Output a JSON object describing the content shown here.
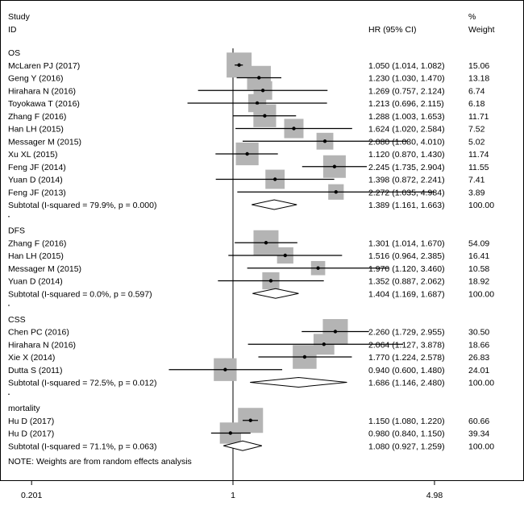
{
  "chart_data": {
    "type": "forest",
    "scale": "log",
    "x_ticks": [
      "0.201",
      "1",
      "4.98"
    ],
    "x_range": [
      0.201,
      4.98
    ],
    "null_value": 1,
    "header": {
      "study_1": "Study",
      "study_2": "ID",
      "hr": "HR (95% CI)",
      "weight_1": "%",
      "weight_2": "Weight"
    },
    "note": "NOTE: Weights are from random effects analysis",
    "groups": [
      {
        "name": "OS",
        "studies": [
          {
            "label": "McLaren PJ (2017)",
            "hr": 1.05,
            "lo": 1.014,
            "hi": 1.082,
            "ci_text": "1.050 (1.014, 1.082)",
            "weight": "15.06"
          },
          {
            "label": "Geng Y (2016)",
            "hr": 1.23,
            "lo": 1.03,
            "hi": 1.47,
            "ci_text": "1.230 (1.030, 1.470)",
            "weight": "13.18"
          },
          {
            "label": "Hirahara N (2016)",
            "hr": 1.269,
            "lo": 0.757,
            "hi": 2.124,
            "ci_text": "1.269 (0.757, 2.124)",
            "weight": "6.74"
          },
          {
            "label": "Toyokawa T (2016)",
            "hr": 1.213,
            "lo": 0.696,
            "hi": 2.115,
            "ci_text": "1.213 (0.696, 2.115)",
            "weight": "6.18"
          },
          {
            "label": "Zhang F (2016)",
            "hr": 1.288,
            "lo": 1.003,
            "hi": 1.653,
            "ci_text": "1.288 (1.003, 1.653)",
            "weight": "11.71"
          },
          {
            "label": "Han LH (2015)",
            "hr": 1.624,
            "lo": 1.02,
            "hi": 2.584,
            "ci_text": "1.624 (1.020, 2.584)",
            "weight": "7.52"
          },
          {
            "label": "Messager M (2015)",
            "hr": 2.08,
            "lo": 1.08,
            "hi": 4.01,
            "ci_text": "2.080 (1.080, 4.010)",
            "weight": "5.02"
          },
          {
            "label": "Xu XL (2015)",
            "hr": 1.12,
            "lo": 0.87,
            "hi": 1.43,
            "ci_text": "1.120 (0.870, 1.430)",
            "weight": "11.74"
          },
          {
            "label": "Feng JF (2014)",
            "hr": 2.245,
            "lo": 1.735,
            "hi": 2.904,
            "ci_text": "2.245 (1.735, 2.904)",
            "weight": "11.55"
          },
          {
            "label": "Yuan D (2014)",
            "hr": 1.398,
            "lo": 0.872,
            "hi": 2.241,
            "ci_text": "1.398 (0.872, 2.241)",
            "weight": "7.41"
          },
          {
            "label": "Feng JF (2013)",
            "hr": 2.272,
            "lo": 1.035,
            "hi": 4.984,
            "ci_text": "2.272 (1.035, 4.984)",
            "weight": "3.89"
          }
        ],
        "subtotal": {
          "label": "Subtotal  (I-squared = 79.9%, p = 0.000)",
          "hr": 1.389,
          "lo": 1.161,
          "hi": 1.663,
          "ci_text": "1.389 (1.161, 1.663)",
          "weight": "100.00"
        }
      },
      {
        "name": "DFS",
        "studies": [
          {
            "label": "Zhang F (2016)",
            "hr": 1.301,
            "lo": 1.014,
            "hi": 1.67,
            "ci_text": "1.301 (1.014, 1.670)",
            "weight": "54.09"
          },
          {
            "label": "Han LH (2015)",
            "hr": 1.516,
            "lo": 0.964,
            "hi": 2.385,
            "ci_text": "1.516 (0.964, 2.385)",
            "weight": "16.41"
          },
          {
            "label": "Messager M (2015)",
            "hr": 1.97,
            "lo": 1.12,
            "hi": 3.46,
            "ci_text": "1.970 (1.120, 3.460)",
            "weight": "10.58"
          },
          {
            "label": "Yuan D (2014)",
            "hr": 1.352,
            "lo": 0.887,
            "hi": 2.062,
            "ci_text": "1.352 (0.887, 2.062)",
            "weight": "18.92"
          }
        ],
        "subtotal": {
          "label": "Subtotal  (I-squared = 0.0%, p = 0.597)",
          "hr": 1.404,
          "lo": 1.169,
          "hi": 1.687,
          "ci_text": "1.404 (1.169, 1.687)",
          "weight": "100.00"
        }
      },
      {
        "name": "CSS",
        "studies": [
          {
            "label": "Chen PC (2016)",
            "hr": 2.26,
            "lo": 1.729,
            "hi": 2.955,
            "ci_text": "2.260 (1.729, 2.955)",
            "weight": "30.50"
          },
          {
            "label": "Hirahara N (2016)",
            "hr": 2.064,
            "lo": 1.127,
            "hi": 3.878,
            "ci_text": "2.064 (1.127, 3.878)",
            "weight": "18.66"
          },
          {
            "label": "Xie X (2014)",
            "hr": 1.77,
            "lo": 1.224,
            "hi": 2.578,
            "ci_text": "1.770 (1.224, 2.578)",
            "weight": "26.83"
          },
          {
            "label": "Dutta S (2011)",
            "hr": 0.94,
            "lo": 0.6,
            "hi": 1.48,
            "ci_text": "0.940 (0.600, 1.480)",
            "weight": "24.01"
          }
        ],
        "subtotal": {
          "label": "Subtotal  (I-squared = 72.5%, p = 0.012)",
          "hr": 1.686,
          "lo": 1.146,
          "hi": 2.48,
          "ci_text": "1.686 (1.146, 2.480)",
          "weight": "100.00"
        }
      },
      {
        "name": "mortality",
        "studies": [
          {
            "label": "Hu D (2017)",
            "hr": 1.15,
            "lo": 1.08,
            "hi": 1.22,
            "ci_text": "1.150 (1.080, 1.220)",
            "weight": "60.66"
          },
          {
            "label": "Hu D (2017)",
            "hr": 0.98,
            "lo": 0.84,
            "hi": 1.15,
            "ci_text": "0.980 (0.840, 1.150)",
            "weight": "39.34"
          }
        ],
        "subtotal": {
          "label": "Subtotal  (I-squared = 71.1%, p = 0.063)",
          "hr": 1.08,
          "lo": 0.927,
          "hi": 1.259,
          "ci_text": "1.080 (0.927, 1.259)",
          "weight": "100.00"
        }
      }
    ]
  }
}
